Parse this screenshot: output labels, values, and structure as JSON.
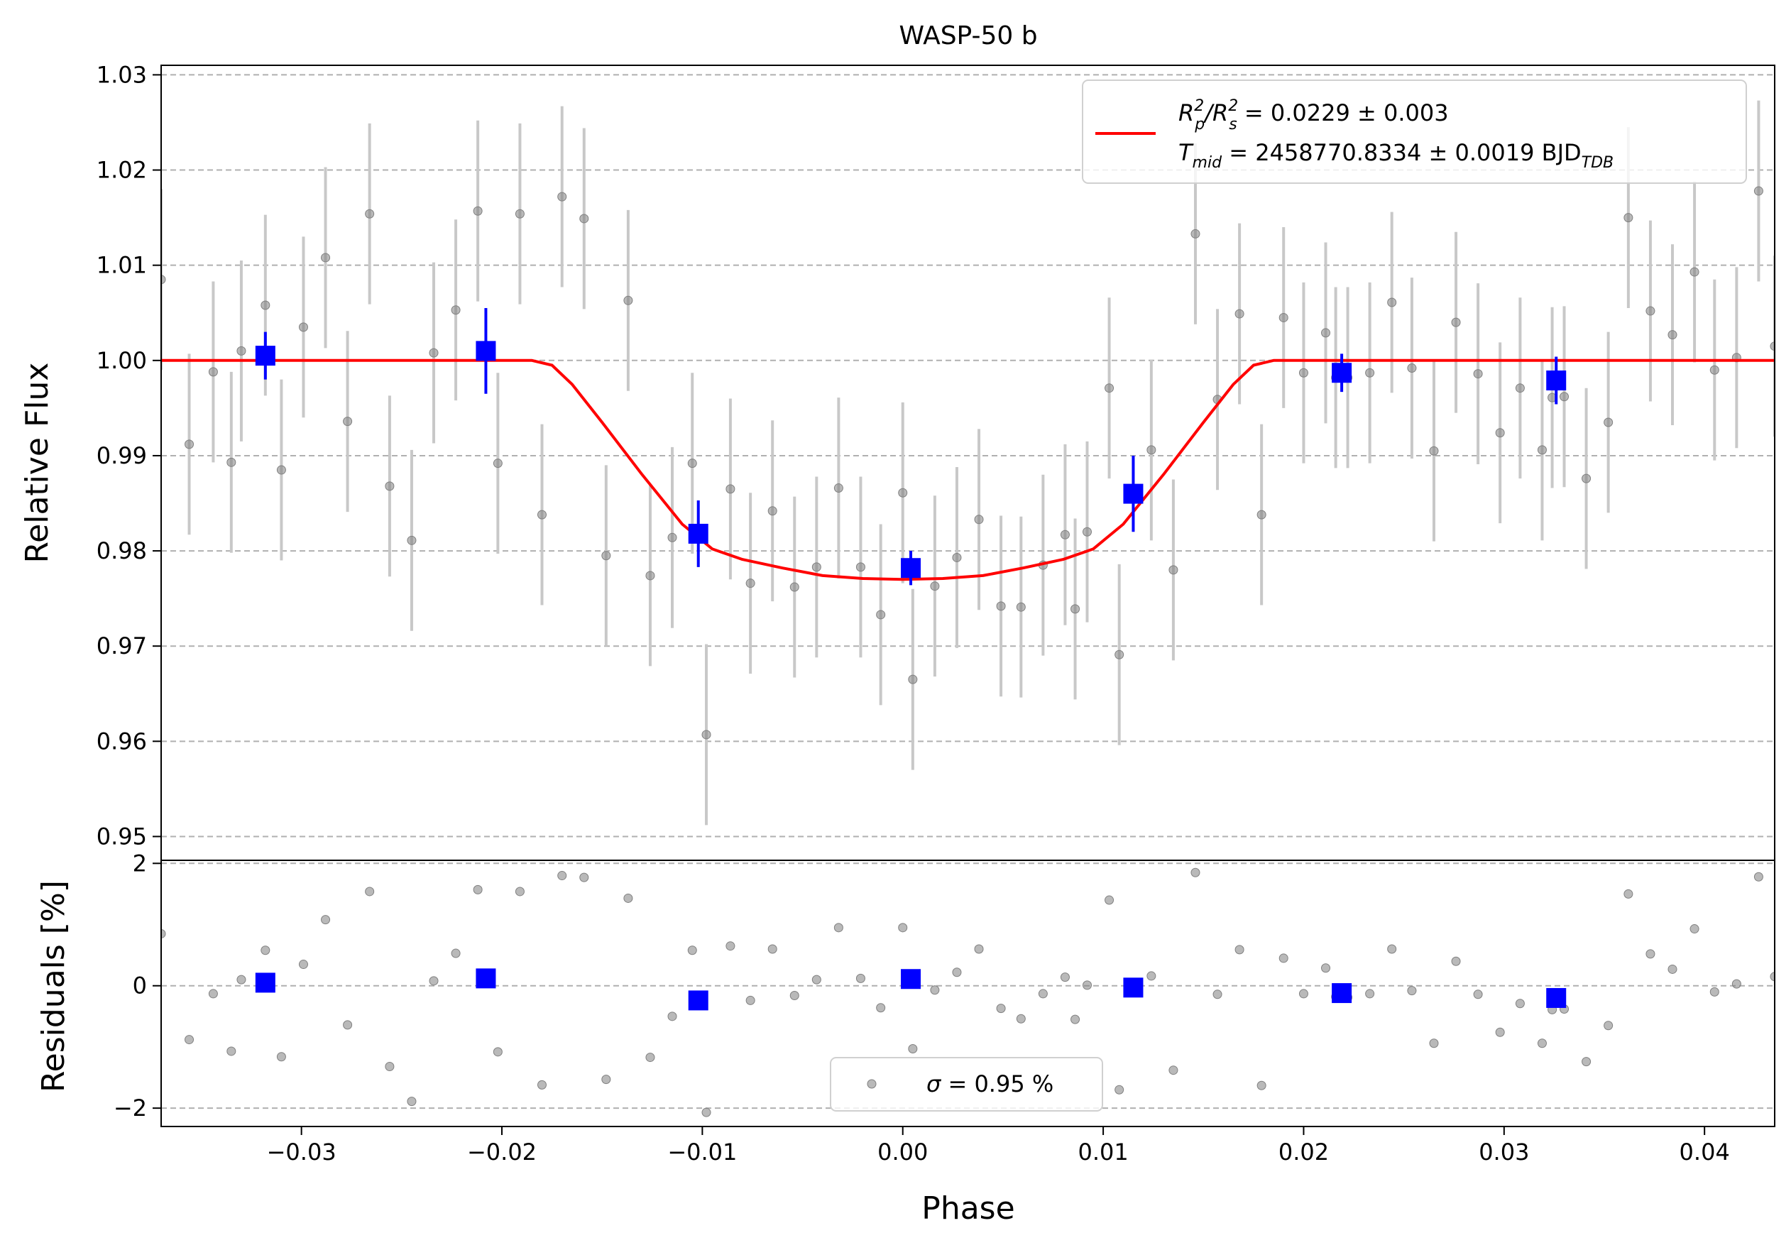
{
  "chart_data": {
    "type": "scatter",
    "title": "WASP-50 b",
    "xlabel": "Phase",
    "xlim": [
      -0.037,
      0.0435
    ],
    "colors": {
      "raw": "#808080",
      "raw_error": "#c8c8c8",
      "binned": "#0000ff",
      "model": "#ff0000",
      "grid": "#b0b0b0"
    },
    "panels": [
      {
        "id": "flux",
        "ylabel": "Relative Flux",
        "ylim": [
          0.9475,
          1.031
        ],
        "yticks": [
          0.95,
          0.96,
          0.97,
          0.98,
          0.99,
          1.0,
          1.01,
          1.02,
          1.03
        ],
        "ytick_labels": [
          "0.95",
          "0.96",
          "0.97",
          "0.98",
          "0.99",
          "1.00",
          "1.01",
          "1.02",
          "1.03"
        ],
        "grid": true,
        "legend": {
          "placement": "top-right",
          "line1": {
            "main": "R",
            "sup1": "2",
            "sub1": "p",
            "mid": "/R",
            "sup2": "2",
            "sub2": "s",
            "rest": " = 0.0229 ± 0.003"
          },
          "line2": {
            "main": "T",
            "sub1": "mid",
            "rest": " = 2458770.8334 ± 0.0019 BJD",
            "sub2": "TDB"
          }
        },
        "model": {
          "name": "transit model",
          "x": [
            -0.037,
            -0.0185,
            -0.0175,
            -0.0165,
            -0.015,
            -0.013,
            -0.011,
            -0.0095,
            -0.008,
            -0.006,
            -0.004,
            -0.002,
            0.0,
            0.002,
            0.004,
            0.006,
            0.008,
            0.0095,
            0.011,
            0.013,
            0.015,
            0.0165,
            0.0175,
            0.0185,
            0.0435
          ],
          "y": [
            1.0,
            1.0,
            0.9995,
            0.9975,
            0.9935,
            0.988,
            0.9828,
            0.9802,
            0.9791,
            0.9782,
            0.9774,
            0.9771,
            0.977,
            0.9771,
            0.9774,
            0.9782,
            0.9791,
            0.9802,
            0.9828,
            0.988,
            0.9935,
            0.9975,
            0.9995,
            1.0,
            1.0
          ]
        },
        "raw": {
          "x": [
            -0.037,
            -0.0356,
            -0.0344,
            -0.0335,
            -0.033,
            -0.0318,
            -0.031,
            -0.0299,
            -0.0288,
            -0.0277,
            -0.0266,
            -0.0256,
            -0.0245,
            -0.0234,
            -0.0223,
            -0.0212,
            -0.0202,
            -0.0191,
            -0.018,
            -0.017,
            -0.0159,
            -0.0148,
            -0.0137,
            -0.0126,
            -0.0115,
            -0.0105,
            -0.0098,
            -0.0086,
            -0.0076,
            -0.0065,
            -0.0054,
            -0.0043,
            -0.0032,
            -0.0021,
            -0.0011,
            0.0,
            0.0005,
            0.0016,
            0.0027,
            0.0038,
            0.0049,
            0.0059,
            0.007,
            0.0081,
            0.0086,
            0.0092,
            0.0103,
            0.0108,
            0.0124,
            0.0135,
            0.0146,
            0.0157,
            0.0168,
            0.0179,
            0.019,
            0.02,
            0.0211,
            0.0216,
            0.0222,
            0.0233,
            0.0244,
            0.0254,
            0.0265,
            0.0276,
            0.0287,
            0.0298,
            0.0308,
            0.0319,
            0.0324,
            0.033,
            0.0341,
            0.0352,
            0.0362,
            0.0373,
            0.0384,
            0.0395,
            0.0405,
            0.0416,
            0.0427,
            0.0435
          ],
          "y": [
            1.0085,
            0.9912,
            0.9988,
            0.9893,
            1.001,
            1.0058,
            0.9885,
            1.0035,
            1.0108,
            0.9936,
            1.0154,
            0.9868,
            0.9811,
            1.0008,
            1.0053,
            1.0157,
            0.9892,
            1.0154,
            0.9838,
            1.0172,
            1.0149,
            0.9795,
            1.0063,
            0.9774,
            0.9814,
            0.9892,
            0.9607,
            0.9865,
            0.9766,
            0.9842,
            0.9762,
            0.9783,
            0.9866,
            0.9783,
            0.9733,
            0.9861,
            0.9665,
            0.9763,
            0.9793,
            0.9833,
            0.9742,
            0.9741,
            0.9785,
            0.9817,
            0.9739,
            0.982,
            0.9971,
            0.9691,
            0.9906,
            0.978,
            1.0133,
            0.9959,
            1.0049,
            0.9838,
            1.0045,
            0.9987,
            1.0029,
            0.9982,
            0.9982,
            0.9987,
            1.0061,
            0.9992,
            0.9905,
            1.004,
            0.9986,
            0.9924,
            0.9971,
            0.9906,
            0.9961,
            0.9962,
            0.9876,
            0.9935,
            1.015,
            1.0052,
            1.0027,
            1.0093,
            0.999,
            1.0003,
            1.0178,
            1.0015
          ],
          "err": 0.0095
        },
        "binned": {
          "x": [
            -0.0318,
            -0.0208,
            -0.0102,
            0.0004,
            0.0115,
            0.0219,
            0.0326
          ],
          "y": [
            1.0005,
            1.001,
            0.9818,
            0.9782,
            0.986,
            0.9987,
            0.9979
          ],
          "err": [
            0.0025,
            0.0045,
            0.0035,
            0.0018,
            0.004,
            0.002,
            0.0025
          ]
        }
      },
      {
        "id": "residuals",
        "ylabel": "Residuals [%]",
        "ylim": [
          -2.3,
          2.05
        ],
        "yticks": [
          -2,
          0,
          2
        ],
        "ytick_labels": [
          "−2",
          "0",
          "2"
        ],
        "grid": true,
        "legend": {
          "placement": "bottom-center",
          "sigma": "σ",
          "text": " = 0.95 %"
        },
        "raw": {
          "y": [
            0.85,
            -0.88,
            -0.13,
            -1.07,
            0.1,
            0.58,
            -1.16,
            0.35,
            1.08,
            -0.64,
            1.54,
            -1.32,
            -1.89,
            0.08,
            0.53,
            1.57,
            -1.08,
            1.54,
            -1.62,
            1.8,
            1.77,
            -1.53,
            1.43,
            -1.17,
            -0.5,
            0.58,
            -2.07,
            0.65,
            -0.24,
            0.6,
            -0.16,
            0.1,
            0.95,
            0.12,
            -0.36,
            0.95,
            -1.03,
            -0.07,
            0.22,
            0.6,
            -0.37,
            -0.54,
            -0.13,
            0.14,
            -0.55,
            0.01,
            1.4,
            -1.7,
            0.16,
            -1.38,
            1.85,
            -0.14,
            0.59,
            -1.63,
            0.45,
            -0.13,
            0.29,
            -0.18,
            -0.19,
            -0.13,
            0.6,
            -0.08,
            -0.94,
            0.4,
            -0.14,
            -0.76,
            -0.29,
            -0.94,
            -0.39,
            -0.38,
            -1.24,
            -0.65,
            1.5,
            0.52,
            0.27,
            0.93,
            -0.1,
            0.03,
            1.78,
            0.15
          ]
        },
        "binned": {
          "y": [
            0.05,
            0.12,
            -0.24,
            0.11,
            -0.03,
            -0.12,
            -0.2
          ]
        }
      }
    ],
    "xticks": [
      -0.03,
      -0.02,
      -0.01,
      0.0,
      0.01,
      0.02,
      0.03,
      0.04
    ],
    "xtick_labels": [
      "−0.03",
      "−0.02",
      "−0.01",
      "0.00",
      "0.01",
      "0.02",
      "0.03",
      "0.04"
    ]
  }
}
